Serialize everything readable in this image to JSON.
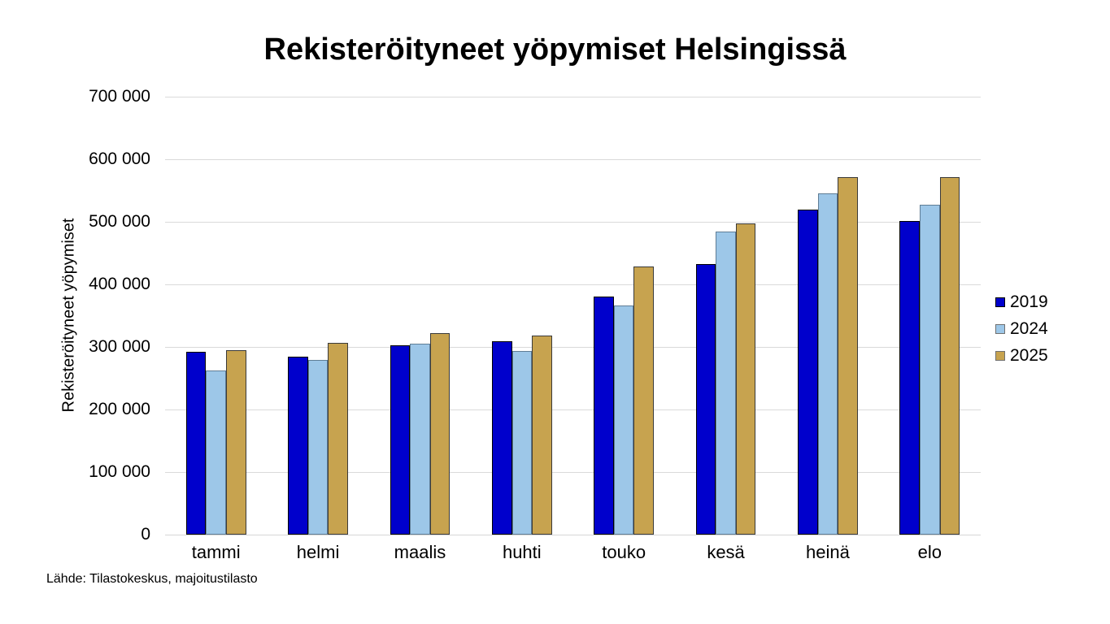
{
  "title": "Rekisteröityneet yöpymiset Helsingissä",
  "source": "Lähde: Tilastokeskus, majoitustilasto",
  "colors": {
    "background": "#ffffff",
    "gridline": "#dadada",
    "text": "#000000",
    "series_2019": "#0000CC",
    "series_2024": "#9DC7E8",
    "series_2025": "#C7A34F"
  },
  "chart_data": {
    "type": "bar",
    "title": "Rekisteröityneet yöpymiset Helsingissä",
    "xlabel": "",
    "ylabel": "Rekisteröityneet yöpymiset",
    "ylim": [
      0,
      700000
    ],
    "grid": true,
    "legend_position": "right",
    "yticks": [
      0,
      100000,
      200000,
      300000,
      400000,
      500000,
      600000,
      700000
    ],
    "ytick_labels": [
      "0",
      "100 000",
      "200 000",
      "300 000",
      "400 000",
      "500 000",
      "600 000",
      "700 000"
    ],
    "categories": [
      "tammi",
      "helmi",
      "maalis",
      "huhti",
      "touko",
      "kesä",
      "heinä",
      "elo"
    ],
    "series": [
      {
        "name": "2019",
        "color": "#0000CC",
        "border_color": "#000000",
        "values": [
          292000,
          284000,
          303000,
          309000,
          380000,
          432000,
          519000,
          502000
        ]
      },
      {
        "name": "2024",
        "color": "#9DC7E8",
        "border_color": "#5F7D95",
        "values": [
          263000,
          279000,
          305000,
          294000,
          366000,
          484000,
          546000,
          527000
        ]
      },
      {
        "name": "2025",
        "color": "#C7A34F",
        "border_color": "#3A3A3A",
        "values": [
          295000,
          306000,
          322000,
          318000,
          428000,
          498000,
          571000,
          572000
        ]
      }
    ]
  }
}
